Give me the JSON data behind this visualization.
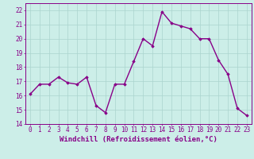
{
  "x": [
    0,
    1,
    2,
    3,
    4,
    5,
    6,
    7,
    8,
    9,
    10,
    11,
    12,
    13,
    14,
    15,
    16,
    17,
    18,
    19,
    20,
    21,
    22,
    23
  ],
  "y": [
    16.1,
    16.8,
    16.8,
    17.3,
    16.9,
    16.8,
    17.3,
    15.3,
    14.8,
    16.8,
    16.8,
    18.4,
    20.0,
    19.5,
    21.9,
    21.1,
    20.9,
    20.7,
    20.0,
    20.0,
    18.5,
    17.5,
    15.1,
    14.6
  ],
  "line_color": "#880088",
  "marker": "D",
  "marker_size": 1.8,
  "bg_color": "#cceee8",
  "grid_color": "#aad4ce",
  "axis_color": "#880088",
  "xlabel": "Windchill (Refroidissement éolien,°C)",
  "xlim": [
    -0.5,
    23.5
  ],
  "ylim": [
    14,
    22.5
  ],
  "yticks": [
    14,
    15,
    16,
    17,
    18,
    19,
    20,
    21,
    22
  ],
  "xticks": [
    0,
    1,
    2,
    3,
    4,
    5,
    6,
    7,
    8,
    9,
    10,
    11,
    12,
    13,
    14,
    15,
    16,
    17,
    18,
    19,
    20,
    21,
    22,
    23
  ],
  "xlabel_fontsize": 6.5,
  "tick_fontsize": 5.5,
  "line_width": 1.0
}
